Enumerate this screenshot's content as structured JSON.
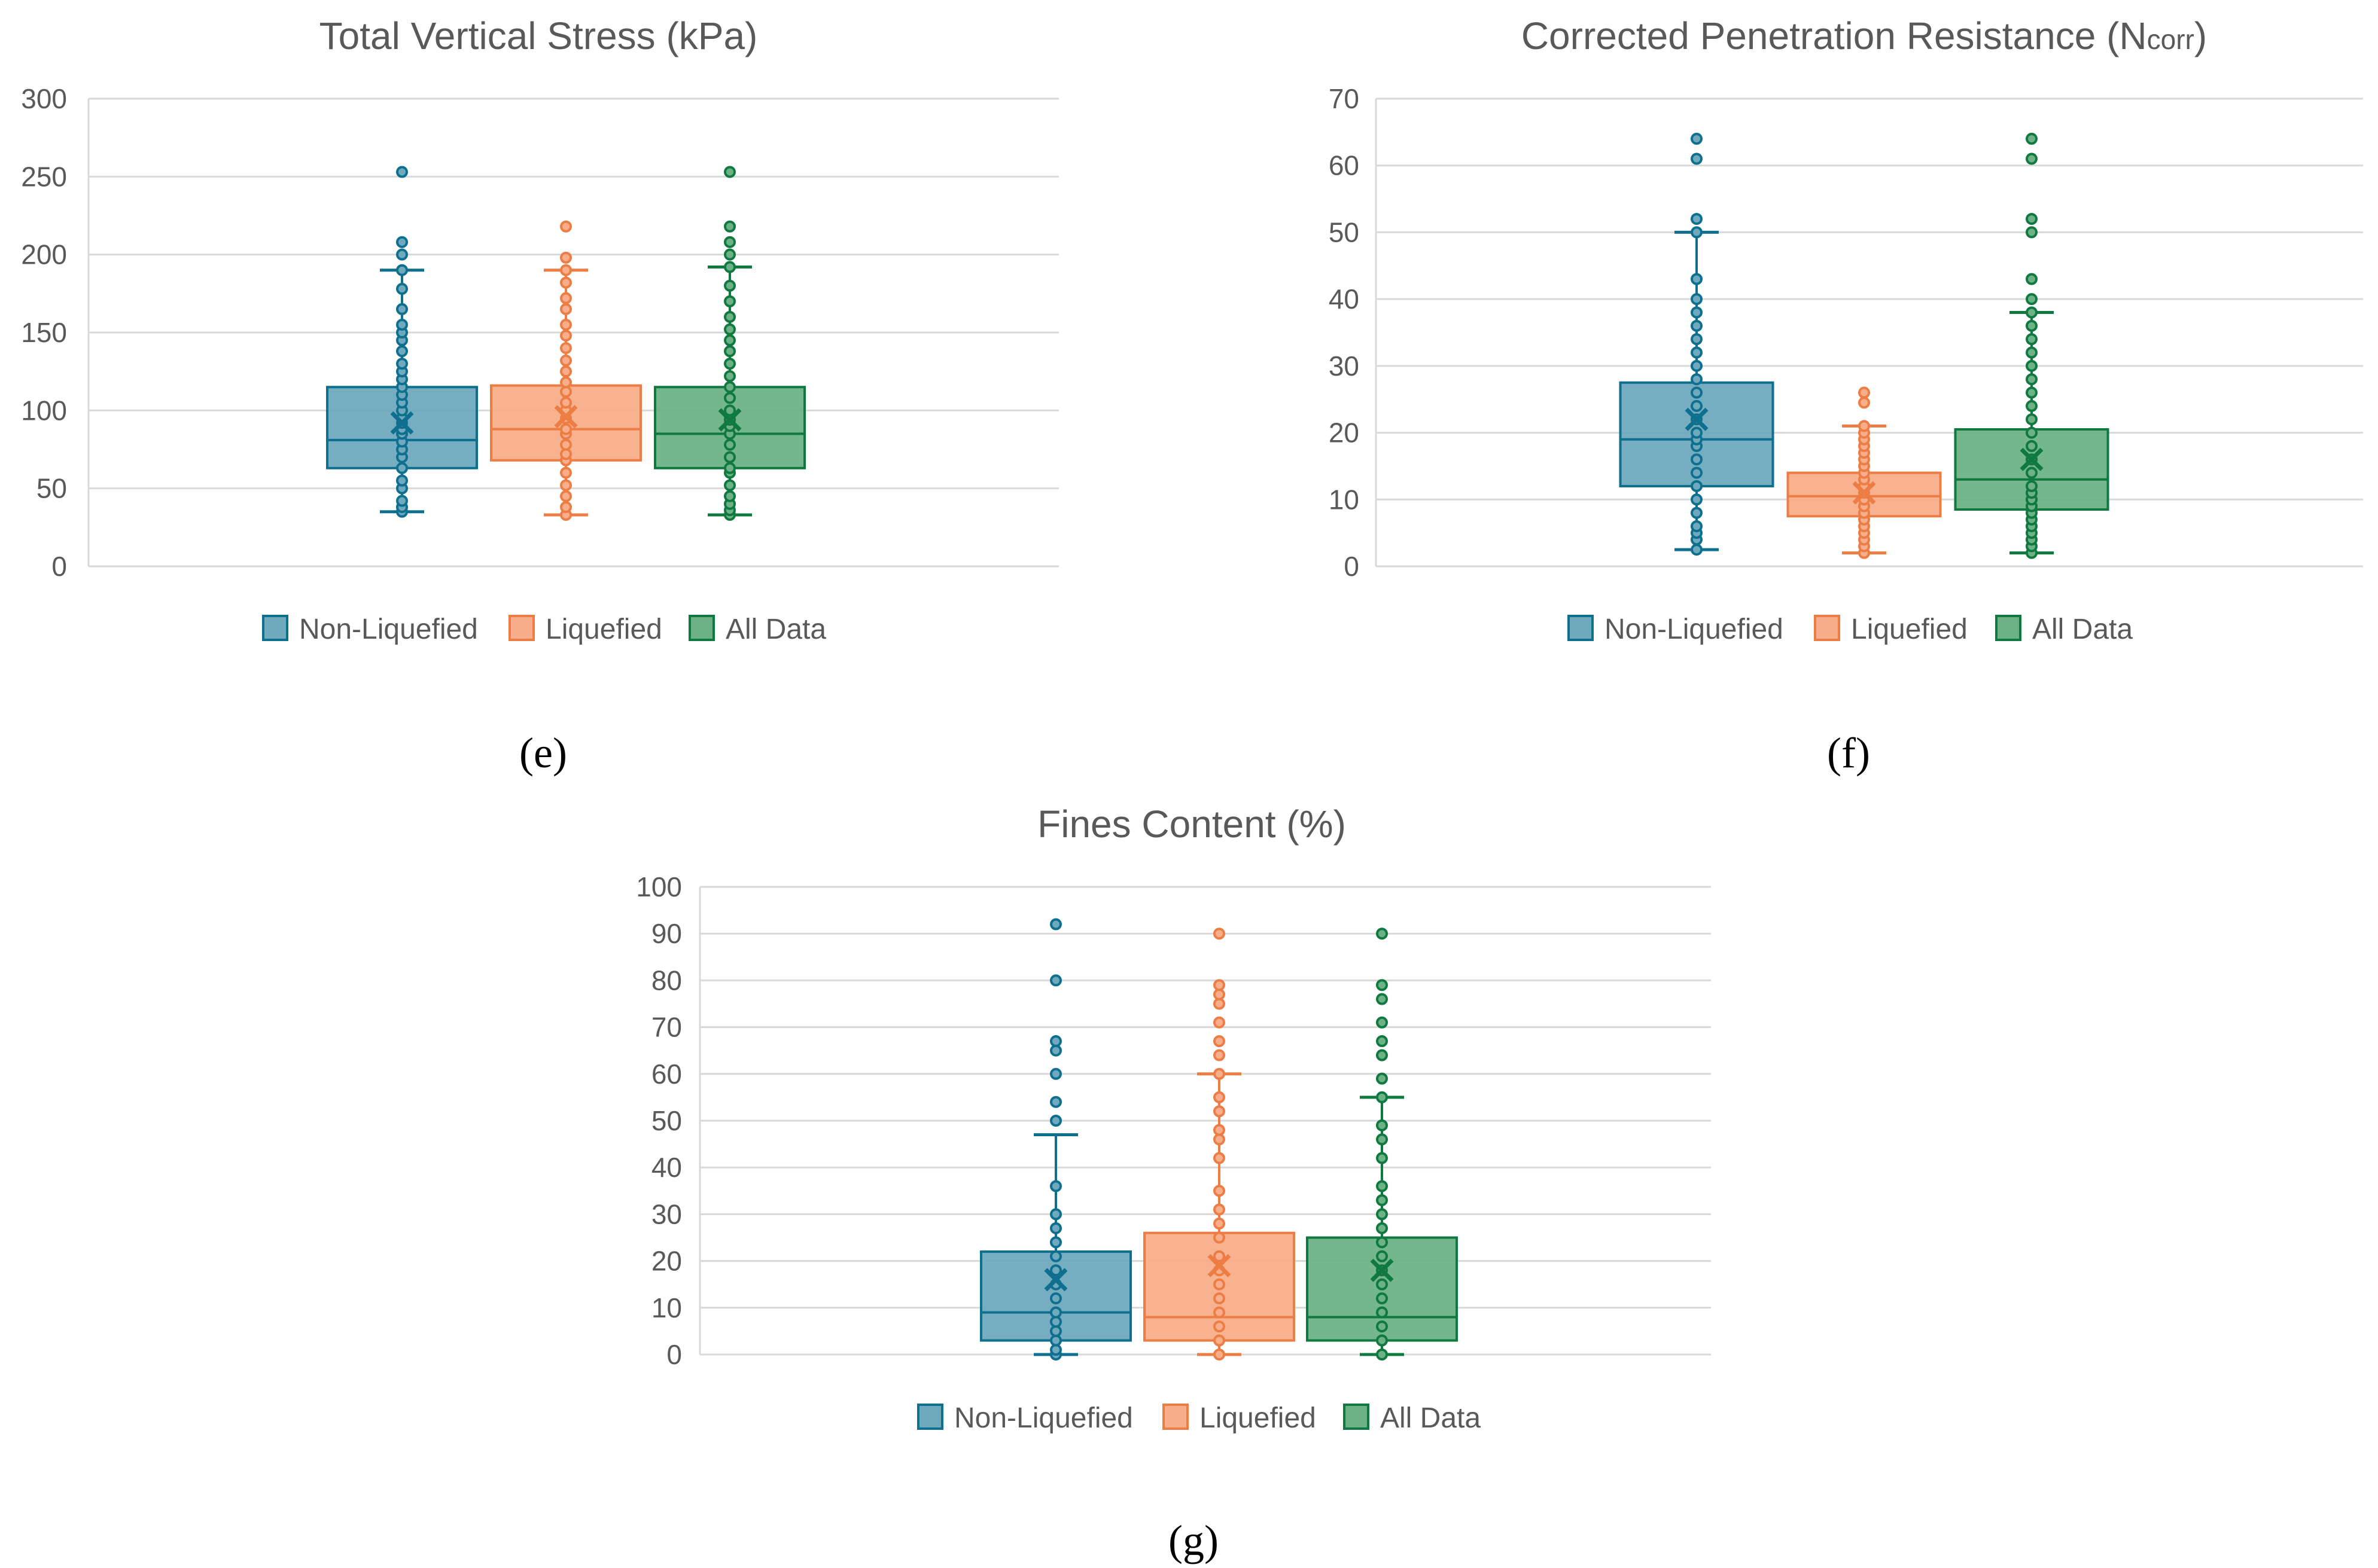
{
  "series_styles": [
    {
      "name": "Non-Liquefied",
      "color": "#0E6F8E",
      "fill": "#6FA9BD"
    },
    {
      "name": "Liquefied",
      "color": "#EC7D45",
      "fill": "#F8AE8A"
    },
    {
      "name": "All Data",
      "color": "#10793F",
      "fill": "#6DB287"
    }
  ],
  "chart_data": [
    {
      "type": "box",
      "title": "Total Vertical Stress (kPa)",
      "panel_label": "(e)",
      "ylim": [
        0,
        300
      ],
      "ticks": [
        0,
        50,
        100,
        150,
        200,
        250,
        300
      ],
      "grid": true,
      "legend": "bottom",
      "series": [
        {
          "name": "Non-Liquefied",
          "min": 35,
          "q1": 63,
          "median": 81,
          "q3": 115,
          "max": 190,
          "mean": 92,
          "points": [
            35,
            38,
            42,
            50,
            55,
            63,
            70,
            75,
            80,
            85,
            88,
            92,
            95,
            100,
            105,
            110,
            115,
            120,
            125,
            130,
            138,
            145,
            150,
            155,
            165,
            178,
            190,
            200,
            208,
            253
          ]
        },
        {
          "name": "Liquefied",
          "min": 33,
          "q1": 68,
          "median": 88,
          "q3": 116,
          "max": 190,
          "mean": 96,
          "points": [
            33,
            38,
            45,
            52,
            60,
            68,
            72,
            78,
            85,
            88,
            95,
            100,
            105,
            112,
            118,
            125,
            132,
            140,
            148,
            155,
            165,
            172,
            182,
            190,
            198,
            218
          ]
        },
        {
          "name": "All Data",
          "min": 33,
          "q1": 63,
          "median": 85,
          "q3": 115,
          "max": 192,
          "mean": 94,
          "points": [
            33,
            36,
            40,
            45,
            52,
            60,
            63,
            70,
            78,
            85,
            90,
            94,
            100,
            108,
            115,
            122,
            130,
            138,
            145,
            152,
            160,
            170,
            180,
            192,
            200,
            208,
            218,
            253
          ]
        }
      ]
    },
    {
      "type": "box",
      "title": "Corrected Penetration Resistance (N",
      "title_sub": "corr",
      "title_end": ")",
      "panel_label": "(f)",
      "ylim": [
        0,
        70
      ],
      "ticks": [
        0,
        10,
        20,
        30,
        40,
        50,
        60,
        70
      ],
      "grid": true,
      "legend": "bottom",
      "series": [
        {
          "name": "Non-Liquefied",
          "min": 2.5,
          "q1": 12,
          "median": 19,
          "q3": 27.5,
          "max": 50,
          "mean": 22,
          "points": [
            2.5,
            4,
            5,
            6,
            8,
            10,
            12,
            14,
            16,
            18,
            19,
            20,
            22,
            24,
            26,
            28,
            30,
            32,
            34,
            36,
            38,
            40,
            43,
            50,
            52,
            61,
            64
          ]
        },
        {
          "name": "Liquefied",
          "min": 2,
          "q1": 7.5,
          "median": 10.5,
          "q3": 14,
          "max": 21,
          "mean": 11,
          "points": [
            2,
            3,
            4,
            5,
            6,
            7,
            8,
            9,
            10,
            11,
            12,
            13,
            14,
            15,
            16,
            17,
            18,
            19,
            20,
            21,
            24.5,
            26
          ]
        },
        {
          "name": "All Data",
          "min": 2,
          "q1": 8.5,
          "median": 13,
          "q3": 20.5,
          "max": 38,
          "mean": 16,
          "points": [
            2,
            3,
            4,
            5,
            6,
            7,
            8,
            9,
            10,
            11,
            12,
            14,
            16,
            18,
            20,
            22,
            24,
            26,
            28,
            30,
            32,
            34,
            36,
            38,
            40,
            43,
            50,
            52,
            61,
            64
          ]
        }
      ]
    },
    {
      "type": "box",
      "title": "Fines Content (%)",
      "panel_label": "(g)",
      "ylim": [
        0,
        100
      ],
      "ticks": [
        0,
        10,
        20,
        30,
        40,
        50,
        60,
        70,
        80,
        90,
        100
      ],
      "grid": true,
      "legend": "bottom",
      "series": [
        {
          "name": "Non-Liquefied",
          "min": 0,
          "q1": 3,
          "median": 9,
          "q3": 22,
          "max": 47,
          "mean": 16,
          "points": [
            0,
            1,
            3,
            5,
            7,
            9,
            12,
            15,
            18,
            21,
            24,
            27,
            30,
            36,
            50,
            54,
            60,
            65,
            67,
            80,
            92
          ]
        },
        {
          "name": "Liquefied",
          "min": 0,
          "q1": 3,
          "median": 8,
          "q3": 26,
          "max": 60,
          "mean": 19,
          "points": [
            0,
            3,
            6,
            9,
            12,
            15,
            18,
            21,
            25,
            28,
            31,
            35,
            42,
            46,
            48,
            52,
            55,
            60,
            64,
            67,
            71,
            75,
            77,
            79,
            90
          ]
        },
        {
          "name": "All Data",
          "min": 0,
          "q1": 3,
          "median": 8,
          "q3": 25,
          "max": 55,
          "mean": 18,
          "points": [
            0,
            3,
            6,
            9,
            12,
            15,
            18,
            21,
            24,
            27,
            30,
            33,
            36,
            42,
            46,
            49,
            55,
            59,
            64,
            67,
            71,
            76,
            79,
            90
          ]
        }
      ]
    }
  ]
}
